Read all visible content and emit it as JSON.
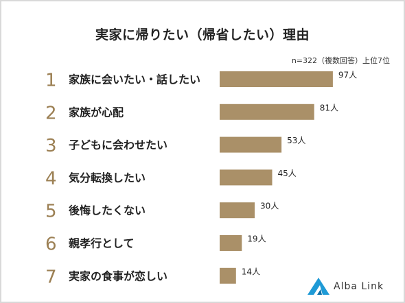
{
  "chart_data": {
    "type": "bar",
    "orientation": "horizontal",
    "title": "実家に帰りたい（帰省したい）理由",
    "note": "n=322（複数回答）上位7位",
    "ranks": [
      "1",
      "2",
      "3",
      "4",
      "5",
      "6",
      "7"
    ],
    "categories": [
      "家族に会いたい・話したい",
      "家族が心配",
      "子どもに会わせたい",
      "気分転換したい",
      "後悔したくない",
      "親孝行として",
      "実家の食事が恋しい"
    ],
    "values": [
      97,
      81,
      53,
      45,
      30,
      19,
      14
    ],
    "value_labels": [
      "97人",
      "81人",
      "53人",
      "45人",
      "30人",
      "19人",
      "14人"
    ],
    "colors": {
      "bar": "#aa9068",
      "rank": "#9c8054",
      "text": "#222222"
    }
  },
  "brand": {
    "name": "Alba Link",
    "accent": "#1e9ad6"
  }
}
